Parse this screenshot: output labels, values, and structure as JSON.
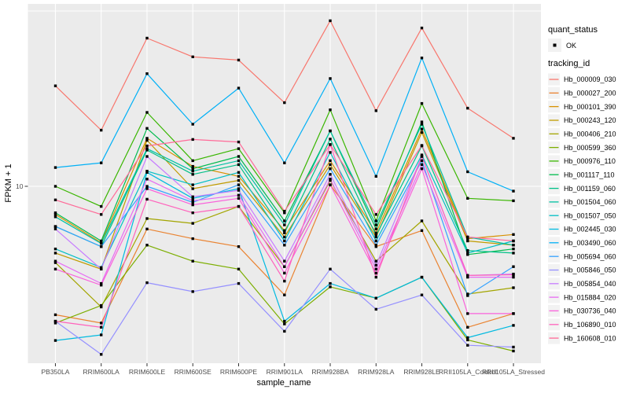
{
  "figure": {
    "background": "#FFFFFF",
    "panel_background": "#EBEBEB",
    "grid_color": "#FFFFFF",
    "tick_color": "#333333",
    "tick_text_color": "#4D4D4D",
    "legend_key_background": "#F2F2F2",
    "marker_color": "#000000"
  },
  "axes": {
    "x_title": "sample_name",
    "y_title": "FPKM + 1",
    "y_tick_labels": [
      "10"
    ]
  },
  "legend": {
    "quant_status": {
      "title": "quant_status",
      "items": [
        {
          "label": "OK",
          "marker": "black-point"
        }
      ]
    },
    "tracking_id": {
      "title": "tracking_id"
    }
  },
  "chart_data": {
    "type": "line",
    "title": "",
    "xlabel": "sample_name",
    "ylabel": "FPKM + 1",
    "y_scale": "log10",
    "y_axis_breaks": [
      10
    ],
    "y_gridline_values": [
      10,
      100
    ],
    "ylim": [
      1,
      110
    ],
    "grid": true,
    "legend_position": "right",
    "categories": [
      "PB350LA",
      "RRIM600LA",
      "RRIM600LE",
      "RRIM600SE",
      "RRIM600PE",
      "RRIM901LA",
      "RRIM928BA",
      "RRIM928LA",
      "RRIM928LE",
      "RRII105LA_Control",
      "RRII105LA_Stressed"
    ],
    "series": [
      {
        "name": "Hb_000009_030",
        "color": "#F8766D",
        "values": [
          37.4,
          20.9,
          70.0,
          54.8,
          52.5,
          30.0,
          88.0,
          27.0,
          80.0,
          27.9,
          18.8
        ]
      },
      {
        "name": "Hb_000027_200",
        "color": "#EA8331",
        "values": [
          1.85,
          1.66,
          5.71,
          5.03,
          4.53,
          2.4,
          10.2,
          4.53,
          5.59,
          1.57,
          1.88
        ]
      },
      {
        "name": "Hb_000101_390",
        "color": "#D89000",
        "values": [
          6.91,
          4.77,
          18.8,
          13.0,
          11.4,
          5.59,
          14.0,
          5.42,
          21.2,
          5.03,
          5.31
        ]
      },
      {
        "name": "Hb_000243_120",
        "color": "#C09B00",
        "values": [
          4.16,
          3.37,
          18.3,
          9.69,
          10.8,
          5.14,
          13.3,
          5.14,
          20.3,
          4.88,
          4.62
        ]
      },
      {
        "name": "Hb_000406_210",
        "color": "#A3A500",
        "values": [
          3.67,
          2.05,
          6.55,
          6.15,
          7.68,
          3.48,
          10.8,
          3.74,
          6.35,
          2.43,
          2.64
        ]
      },
      {
        "name": "Hb_000599_360",
        "color": "#7CAE00",
        "values": [
          1.66,
          2.09,
          4.62,
          3.74,
          3.37,
          1.64,
          2.67,
          2.3,
          3.03,
          1.33,
          1.15
        ]
      },
      {
        "name": "Hb_000976_110",
        "color": "#39B600",
        "values": [
          10.0,
          7.68,
          26.4,
          14.0,
          16.4,
          7.06,
          27.3,
          6.35,
          29.7,
          8.54,
          8.27
        ]
      },
      {
        "name": "Hb_001117_110",
        "color": "#00BB4E",
        "values": [
          7.06,
          4.88,
          21.4,
          12.6,
          14.8,
          6.35,
          20.7,
          5.71,
          23.3,
          4.08,
          4.39
        ]
      },
      {
        "name": "Hb_001159_060",
        "color": "#00C087",
        "values": [
          5.9,
          4.53,
          16.1,
          11.7,
          13.3,
          5.42,
          18.6,
          5.25,
          17.0,
          4.3,
          4.16
        ]
      },
      {
        "name": "Hb_001504_060",
        "color": "#00C1A3",
        "values": [
          6.7,
          4.72,
          16.4,
          12.2,
          14.0,
          6.02,
          20.7,
          6.02,
          22.6,
          5.14,
          4.62
        ]
      },
      {
        "name": "Hb_001507_050",
        "color": "#00BFC4",
        "values": [
          4.39,
          3.44,
          12.2,
          10.2,
          12.0,
          4.88,
          15.6,
          4.88,
          15.1,
          4.16,
          4.88
        ]
      },
      {
        "name": "Hb_002445_030",
        "color": "#00BAE0",
        "values": [
          1.32,
          1.42,
          12.0,
          8.54,
          9.69,
          1.7,
          2.79,
          2.3,
          3.03,
          1.37,
          1.61
        ]
      },
      {
        "name": "Hb_003490_060",
        "color": "#00B0F6",
        "values": [
          12.8,
          13.6,
          43.9,
          22.6,
          36.3,
          13.6,
          41.2,
          11.4,
          54.0,
          12.1,
          9.39
        ]
      },
      {
        "name": "Hb_005694_060",
        "color": "#35A2FF",
        "values": [
          5.9,
          4.53,
          10.0,
          8.1,
          10.2,
          4.62,
          12.6,
          4.62,
          14.0,
          2.38,
          3.48
        ]
      },
      {
        "name": "Hb_005846_050",
        "color": "#9590FF",
        "values": [
          1.7,
          1.1,
          2.82,
          2.51,
          2.79,
          1.49,
          3.37,
          1.99,
          2.4,
          1.24,
          1.21
        ]
      },
      {
        "name": "Hb_005854_040",
        "color": "#C77CFF",
        "values": [
          5.71,
          3.37,
          14.8,
          8.72,
          9.49,
          3.74,
          11.7,
          3.55,
          14.8,
          3.1,
          3.16
        ]
      },
      {
        "name": "Hb_015884_020",
        "color": "#E76BF3",
        "values": [
          3.74,
          2.79,
          11.0,
          8.27,
          8.9,
          3.48,
          11.0,
          3.37,
          13.3,
          3.03,
          3.03
        ]
      },
      {
        "name": "Hb_030736_040",
        "color": "#FA62DB",
        "values": [
          3.37,
          2.73,
          9.69,
          7.84,
          8.54,
          3.2,
          10.2,
          3.2,
          12.6,
          1.88,
          1.88
        ]
      },
      {
        "name": "Hb_106890_010",
        "color": "#FF62BC",
        "values": [
          1.7,
          1.57,
          8.44,
          7.06,
          7.68,
          2.88,
          17.3,
          3.03,
          14.8,
          3.1,
          3.13
        ]
      },
      {
        "name": "Hb_160608_010",
        "color": "#FF6A98",
        "values": [
          8.36,
          6.91,
          17.0,
          18.5,
          17.9,
          7.21,
          17.3,
          6.91,
          17.1,
          5.14,
          4.88
        ]
      }
    ]
  }
}
